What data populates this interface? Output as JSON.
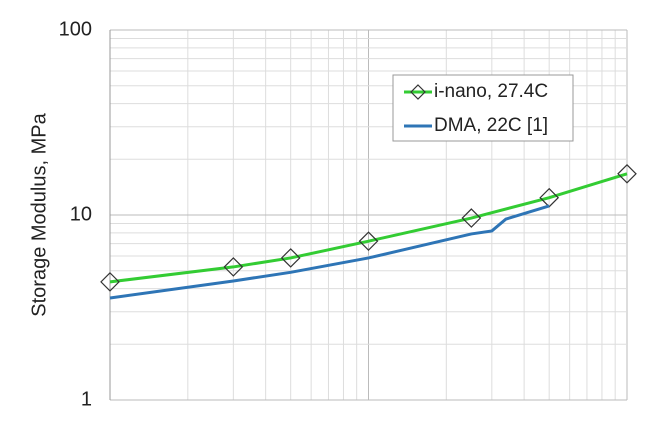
{
  "chart_data": {
    "type": "line",
    "y_label": "Storage Modulus, MPa",
    "x_scale": "log",
    "y_scale": "log",
    "xlim": [
      0.1,
      10
    ],
    "ylim": [
      1,
      100
    ],
    "yticks": [
      1,
      10,
      100
    ],
    "grid": true,
    "series": [
      {
        "name": "i-nano, 27.4C",
        "color": "#33cc33",
        "marker": "diamond",
        "x": [
          0.1,
          0.3,
          0.5,
          1,
          2.5,
          5,
          10
        ],
        "values": [
          4.35,
          5.24,
          5.86,
          7.22,
          9.63,
          12.4,
          16.7
        ]
      },
      {
        "name": "DMA, 22C [1]",
        "color": "#2e75b6",
        "x": [
          0.1,
          0.3,
          0.5,
          1,
          2.5,
          3,
          3.4,
          5
        ],
        "values": [
          3.56,
          4.4,
          4.9,
          5.86,
          7.9,
          8.2,
          9.5,
          11.2
        ]
      }
    ]
  }
}
